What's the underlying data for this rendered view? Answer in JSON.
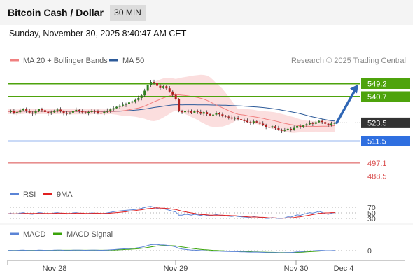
{
  "header": {
    "title": "Bitcoin Cash / Dollar",
    "timeframe": "30 MIN"
  },
  "timestamp": "Sunday, November 30, 2025 8:40:47 AM CET",
  "colors": {
    "resistance": "#4ea30c",
    "support": "#2f6fe0",
    "lower": "#d94a4a",
    "current": "#333333",
    "ma20": "#f08080",
    "ma50": "#2c5a99",
    "bands": "#f9d3d3",
    "rsi": "#5b84d6",
    "rsi9": "#e02020",
    "macd": "#5b84d6",
    "macdsig": "#3aa30a",
    "candle_up": "#2e7d1e",
    "candle_down": "#b02020"
  },
  "chart_data": {
    "type": "candlestick",
    "legend": [
      {
        "name": "MA 20 + Bollinger Bands",
        "color": "#f08080"
      },
      {
        "name": "MA 50",
        "color": "#2c5a99"
      }
    ],
    "copyright": "Research © 2025 Trading Central",
    "x_ticks": [
      "Nov 28",
      "Nov 29",
      "Nov 30",
      "Dec 4"
    ],
    "ylim": [
      480,
      560
    ],
    "levels": [
      {
        "value": 549.2,
        "label": "549.2",
        "kind": "resistance"
      },
      {
        "value": 540.7,
        "label": "540.7",
        "kind": "resistance"
      },
      {
        "value": 523.5,
        "label": "523.5",
        "kind": "current"
      },
      {
        "value": 511.5,
        "label": "511.5",
        "kind": "support"
      },
      {
        "value": 497.1,
        "label": "497.1",
        "kind": "lower"
      },
      {
        "value": 488.5,
        "label": "488.5",
        "kind": "lower"
      }
    ],
    "projection": {
      "from": 523.5,
      "to": 549.2
    },
    "price_path": [
      530.8,
      531.2,
      529.9,
      530.5,
      531.8,
      532.6,
      531.4,
      530.2,
      529.6,
      531.0,
      532.4,
      531.8,
      530.6,
      529.8,
      530.4,
      531.6,
      532.2,
      531.0,
      530.0,
      529.5,
      530.2,
      531.3,
      532.0,
      531.1,
      530.4,
      529.8,
      530.6,
      531.4,
      530.9,
      530.1,
      529.9,
      530.7,
      531.5,
      532.3,
      533.1,
      534.0,
      534.8,
      535.4,
      536.0,
      536.9,
      537.6,
      538.5,
      539.8,
      541.5,
      544.6,
      548.1,
      550.3,
      549.4,
      547.8,
      546.3,
      547.5,
      546.1,
      544.0,
      541.8,
      539.2,
      531.0,
      530.5,
      531.4,
      531.0,
      530.2,
      531.2,
      530.6,
      529.5,
      530.5,
      529.2,
      528.4,
      528.9,
      529.8,
      529.1,
      528.2,
      527.6,
      527.0,
      526.3,
      526.8,
      525.9,
      525.2,
      524.8,
      524.0,
      523.6,
      524.5,
      523.8,
      523.0,
      522.1,
      520.9,
      520.4,
      521.2,
      520.0,
      519.0,
      518.3,
      518.8,
      519.6,
      519.1,
      520.2,
      521.4,
      520.6,
      521.8,
      522.6,
      523.4,
      522.9,
      523.9,
      524.8,
      524.0,
      522.9,
      522.1,
      523.0,
      523.5
    ],
    "rsi": {
      "name": "RSI",
      "ma_name": "9MA",
      "levels": [
        70,
        50,
        30
      ],
      "values": [
        47,
        48,
        46,
        47,
        49,
        51,
        48,
        46,
        45,
        48,
        51,
        50,
        47,
        46,
        47,
        50,
        51,
        49,
        47,
        46,
        47,
        50,
        51,
        49,
        48,
        46,
        48,
        50,
        49,
        47,
        46,
        48,
        50,
        52,
        54,
        56,
        57,
        58,
        59,
        60,
        61,
        62,
        64,
        66,
        69,
        72,
        73,
        70,
        66,
        63,
        65,
        62,
        59,
        56,
        53,
        42,
        42,
        45,
        44,
        42,
        45,
        43,
        41,
        44,
        41,
        40,
        42,
        44,
        42,
        40,
        39,
        38,
        37,
        39,
        37,
        36,
        35,
        34,
        34,
        37,
        35,
        33,
        32,
        30,
        30,
        33,
        31,
        30,
        30,
        32,
        36,
        35,
        39,
        43,
        41,
        45,
        48,
        51,
        49,
        52,
        55,
        52,
        47,
        45,
        49,
        51
      ],
      "ma": [
        47,
        47,
        47,
        47,
        47,
        48,
        48,
        48,
        48,
        48,
        48,
        48,
        48,
        48,
        48,
        48,
        49,
        49,
        49,
        48,
        48,
        48,
        49,
        49,
        49,
        48,
        48,
        48,
        49,
        49,
        48,
        48,
        48,
        49,
        50,
        51,
        52,
        53,
        54,
        56,
        57,
        58,
        60,
        61,
        63,
        65,
        66,
        67,
        68,
        67,
        67,
        66,
        65,
        63,
        62,
        59,
        56,
        54,
        52,
        50,
        48,
        46,
        44,
        44,
        43,
        42,
        42,
        42,
        42,
        42,
        41,
        41,
        40,
        40,
        39,
        38,
        37,
        36,
        35,
        35,
        35,
        34,
        34,
        33,
        32,
        32,
        32,
        31,
        31,
        31,
        32,
        32,
        33,
        35,
        36,
        38,
        40,
        42,
        44,
        46,
        48,
        49,
        50,
        50,
        51,
        51
      ]
    },
    "macd": {
      "name": "MACD",
      "signal_name": "MACD Signal",
      "zero_label": "0",
      "values": [
        0.2,
        0.3,
        0.1,
        0.2,
        0.4,
        0.5,
        0.3,
        0.2,
        0.1,
        0.3,
        0.5,
        0.4,
        0.3,
        0.2,
        0.3,
        0.5,
        0.6,
        0.5,
        0.3,
        0.2,
        0.3,
        0.5,
        0.6,
        0.5,
        0.4,
        0.3,
        0.4,
        0.5,
        0.5,
        0.4,
        0.3,
        0.4,
        0.6,
        0.8,
        1.0,
        1.3,
        1.5,
        1.7,
        1.9,
        2.1,
        2.3,
        2.6,
        3.0,
        3.5,
        4.3,
        5.3,
        6.1,
        6.3,
        6.2,
        5.9,
        5.8,
        5.5,
        5.0,
        4.4,
        3.8,
        2.3,
        1.6,
        1.2,
        0.9,
        0.6,
        0.5,
        0.3,
        0.1,
        0.0,
        -0.2,
        -0.4,
        -0.5,
        -0.5,
        -0.6,
        -0.7,
        -0.8,
        -0.9,
        -1.0,
        -1.0,
        -1.1,
        -1.2,
        -1.3,
        -1.4,
        -1.5,
        -1.4,
        -1.5,
        -1.6,
        -1.7,
        -1.9,
        -2.0,
        -1.9,
        -2.0,
        -2.1,
        -2.2,
        -2.1,
        -1.9,
        -1.9,
        -1.6,
        -1.3,
        -1.2,
        -0.9,
        -0.6,
        -0.3,
        -0.2,
        0.1,
        0.3,
        0.3,
        0.1,
        0.0,
        0.1,
        0.2
      ],
      "signal": [
        0.2,
        0.2,
        0.2,
        0.2,
        0.3,
        0.3,
        0.3,
        0.3,
        0.3,
        0.3,
        0.3,
        0.3,
        0.3,
        0.3,
        0.3,
        0.3,
        0.4,
        0.4,
        0.4,
        0.4,
        0.4,
        0.4,
        0.4,
        0.4,
        0.4,
        0.4,
        0.4,
        0.4,
        0.4,
        0.4,
        0.4,
        0.4,
        0.4,
        0.5,
        0.6,
        0.7,
        0.8,
        1.0,
        1.2,
        1.3,
        1.5,
        1.7,
        2.0,
        2.3,
        2.7,
        3.2,
        3.8,
        4.3,
        4.7,
        4.9,
        5.1,
        5.2,
        5.2,
        5.0,
        4.8,
        4.3,
        3.8,
        3.3,
        2.8,
        2.4,
        2.0,
        1.6,
        1.3,
        1.0,
        0.8,
        0.5,
        0.3,
        0.2,
        0.0,
        -0.1,
        -0.3,
        -0.4,
        -0.5,
        -0.6,
        -0.7,
        -0.8,
        -0.9,
        -1.0,
        -1.1,
        -1.2,
        -1.3,
        -1.4,
        -1.5,
        -1.6,
        -1.7,
        -1.7,
        -1.8,
        -1.9,
        -1.9,
        -2.0,
        -2.0,
        -1.9,
        -1.9,
        -1.8,
        -1.7,
        -1.5,
        -1.3,
        -1.1,
        -0.9,
        -0.7,
        -0.5,
        -0.3,
        -0.2,
        -0.2,
        -0.1,
        0.0
      ]
    }
  }
}
